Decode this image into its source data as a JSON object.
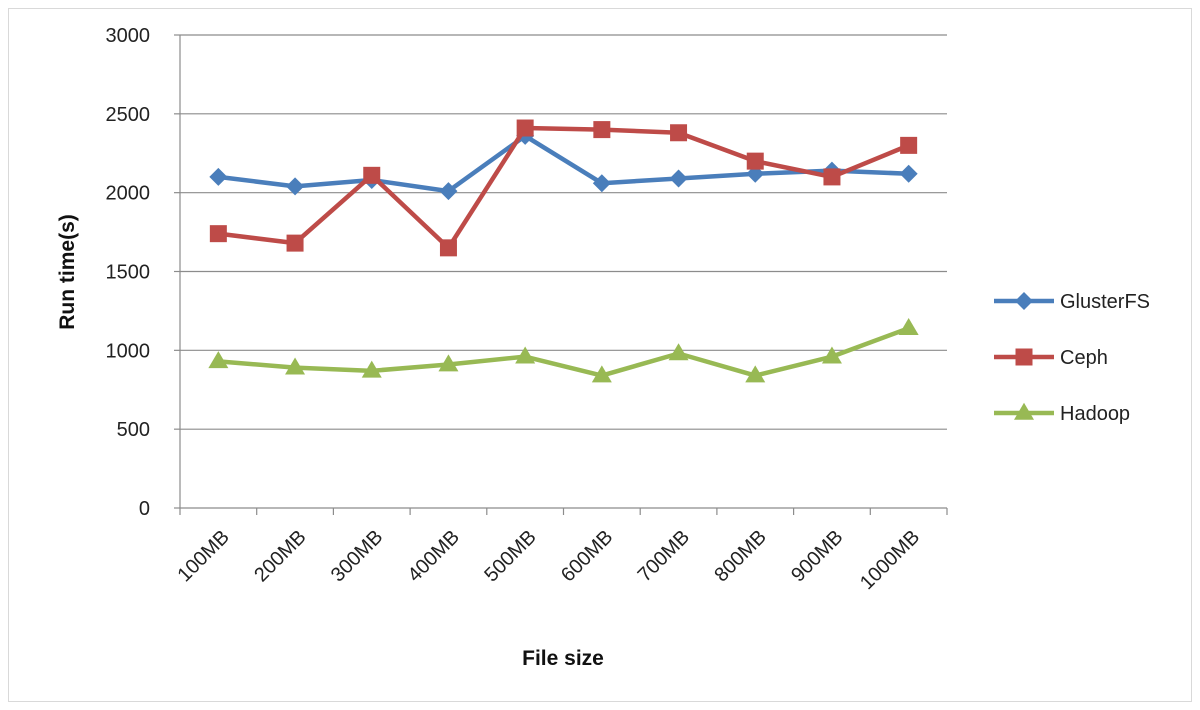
{
  "chart_data": {
    "type": "line",
    "title": "",
    "xlabel": "File size",
    "ylabel": "Run time(s)",
    "ylim": [
      0,
      3000
    ],
    "yticks": [
      0,
      500,
      1000,
      1500,
      2000,
      2500,
      3000
    ],
    "grid": true,
    "legend_position": "right",
    "categories": [
      "100MB",
      "200MB",
      "300MB",
      "400MB",
      "500MB",
      "600MB",
      "700MB",
      "800MB",
      "900MB",
      "1000MB"
    ],
    "series": [
      {
        "name": "GlusterFS",
        "color": "#4a7ebb",
        "marker": "diamond",
        "values": [
          2100,
          2040,
          2080,
          2010,
          2360,
          2060,
          2090,
          2120,
          2140,
          2120
        ]
      },
      {
        "name": "Ceph",
        "color": "#be4b48",
        "marker": "square",
        "values": [
          1740,
          1680,
          2110,
          1650,
          2410,
          2400,
          2380,
          2200,
          2100,
          2300
        ]
      },
      {
        "name": "Hadoop",
        "color": "#98b954",
        "marker": "triangle",
        "values": [
          930,
          890,
          870,
          910,
          960,
          840,
          980,
          840,
          960,
          1140
        ]
      }
    ]
  }
}
